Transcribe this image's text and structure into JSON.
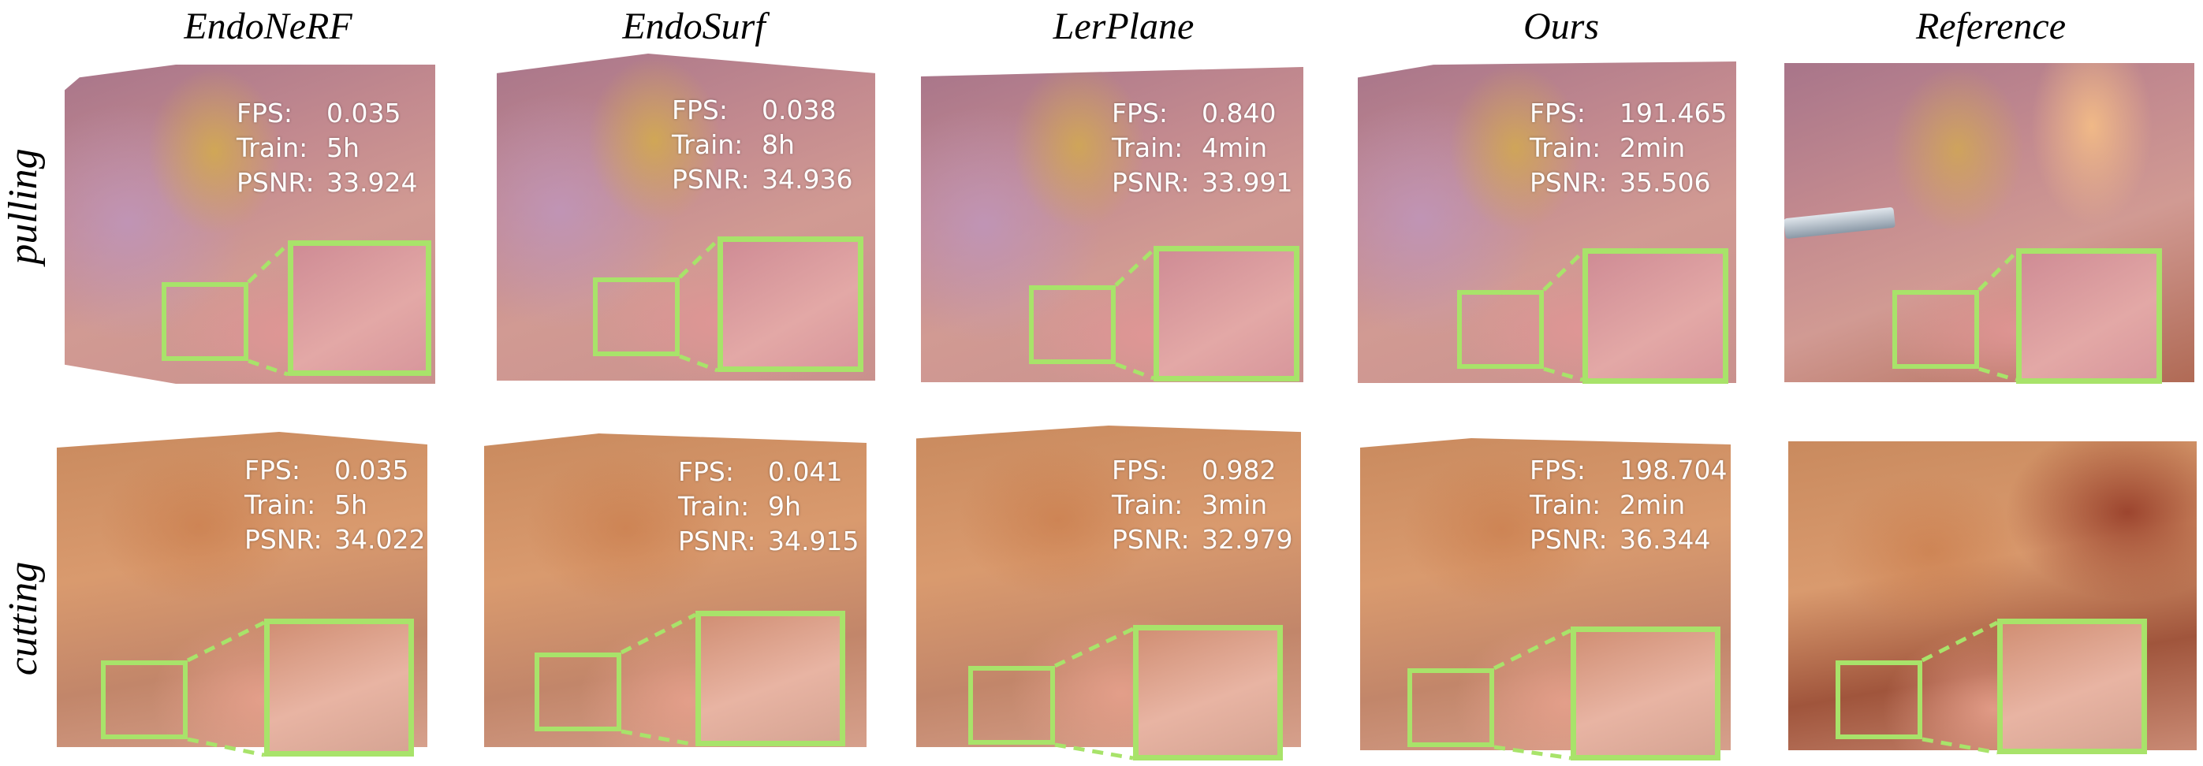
{
  "columns": [
    "EndoNeRF",
    "EndoSurf",
    "LerPlane",
    "Ours",
    "Reference"
  ],
  "rows": [
    "pulling",
    "cutting"
  ],
  "metric_labels": {
    "fps": "FPS:",
    "train": "Train:",
    "psnr": "PSNR:"
  },
  "metrics": {
    "pulling": [
      {
        "fps": "0.035",
        "train": "5h",
        "psnr": "33.924"
      },
      {
        "fps": "0.038",
        "train": "8h",
        "psnr": "34.936"
      },
      {
        "fps": "0.840",
        "train": "4min",
        "psnr": "33.991"
      },
      {
        "fps": "191.465",
        "train": "2min",
        "psnr": "35.506"
      }
    ],
    "cutting": [
      {
        "fps": "0.035",
        "train": "5h",
        "psnr": "34.022"
      },
      {
        "fps": "0.041",
        "train": "9h",
        "psnr": "34.915"
      },
      {
        "fps": "0.982",
        "train": "3min",
        "psnr": "32.979"
      },
      {
        "fps": "198.704",
        "train": "2min",
        "psnr": "36.344"
      }
    ]
  },
  "colors": {
    "highlight_box": "#a8e36a",
    "metric_text": "#ffffff"
  }
}
